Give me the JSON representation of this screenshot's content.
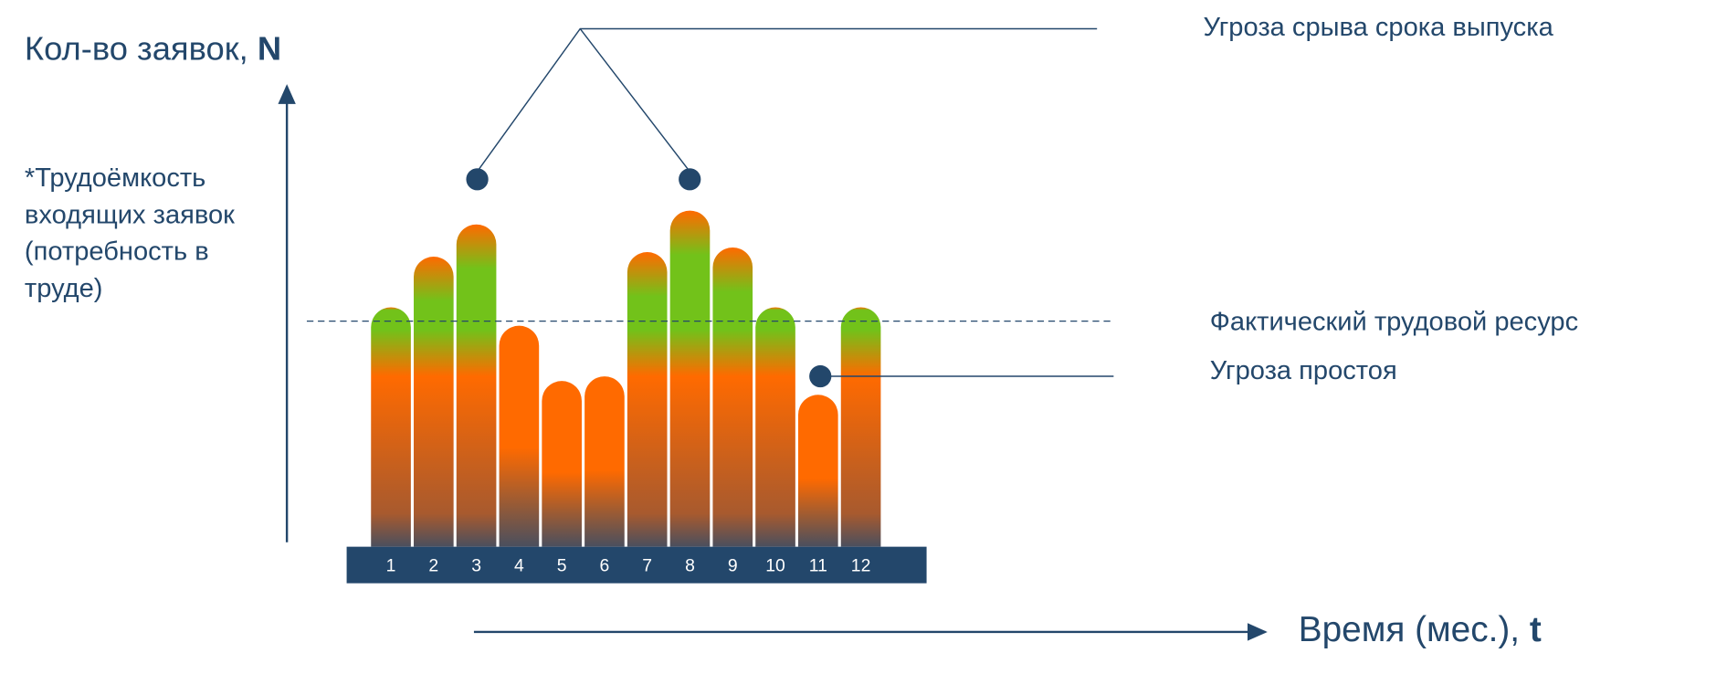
{
  "chart_data": {
    "type": "bar",
    "y_label": "Кол-во заявок,",
    "y_label_symbol": "N",
    "x_label": "Время (мес.),",
    "x_label_symbol": "t",
    "note": [
      "*Трудоёмкость",
      "входящих заявок",
      "(потребность в",
      "труде)"
    ],
    "categories": [
      "1",
      "2",
      "3",
      "4",
      "5",
      "6",
      "7",
      "8",
      "9",
      "10",
      "11",
      "12"
    ],
    "values": [
      52,
      63,
      70,
      48,
      36,
      37,
      64,
      73,
      65,
      52,
      33,
      52
    ],
    "ylim": [
      0,
      100
    ],
    "resource": {
      "label": "Фактический трудовой ресурс",
      "value": 49
    },
    "annotations": {
      "overload": "Угроза срыва срока выпуска",
      "idle": "Угроза простоя"
    },
    "colors": {
      "over": "#ff6a00",
      "ok": "#72c21a",
      "base": "#4a4f5e",
      "axis": "#23476b"
    }
  }
}
